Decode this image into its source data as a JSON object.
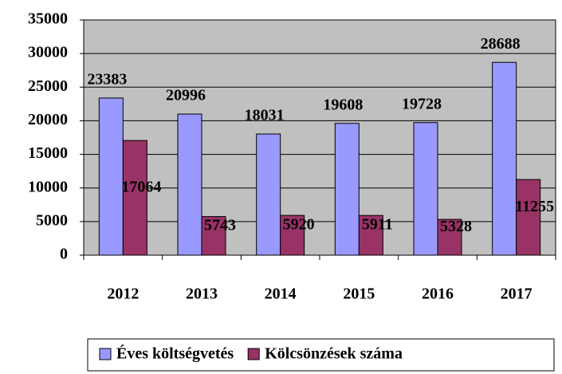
{
  "chart_data": {
    "type": "bar",
    "categories": [
      "2012",
      "2013",
      "2014",
      "2015",
      "2016",
      "2017"
    ],
    "series": [
      {
        "name": "Éves költségvetés",
        "color": "#9999ff",
        "values": [
          23383,
          20996,
          18031,
          19608,
          19728,
          28688
        ]
      },
      {
        "name": "Kölcsönzések száma",
        "color": "#993366",
        "values": [
          17064,
          5743,
          5920,
          5911,
          5328,
          11255
        ]
      }
    ],
    "ylim": [
      0,
      35000
    ],
    "yticks": [
      0,
      5000,
      10000,
      15000,
      20000,
      25000,
      30000,
      35000
    ],
    "grid": true,
    "plot_background": "#c0c0c0",
    "legend": "bottom"
  }
}
